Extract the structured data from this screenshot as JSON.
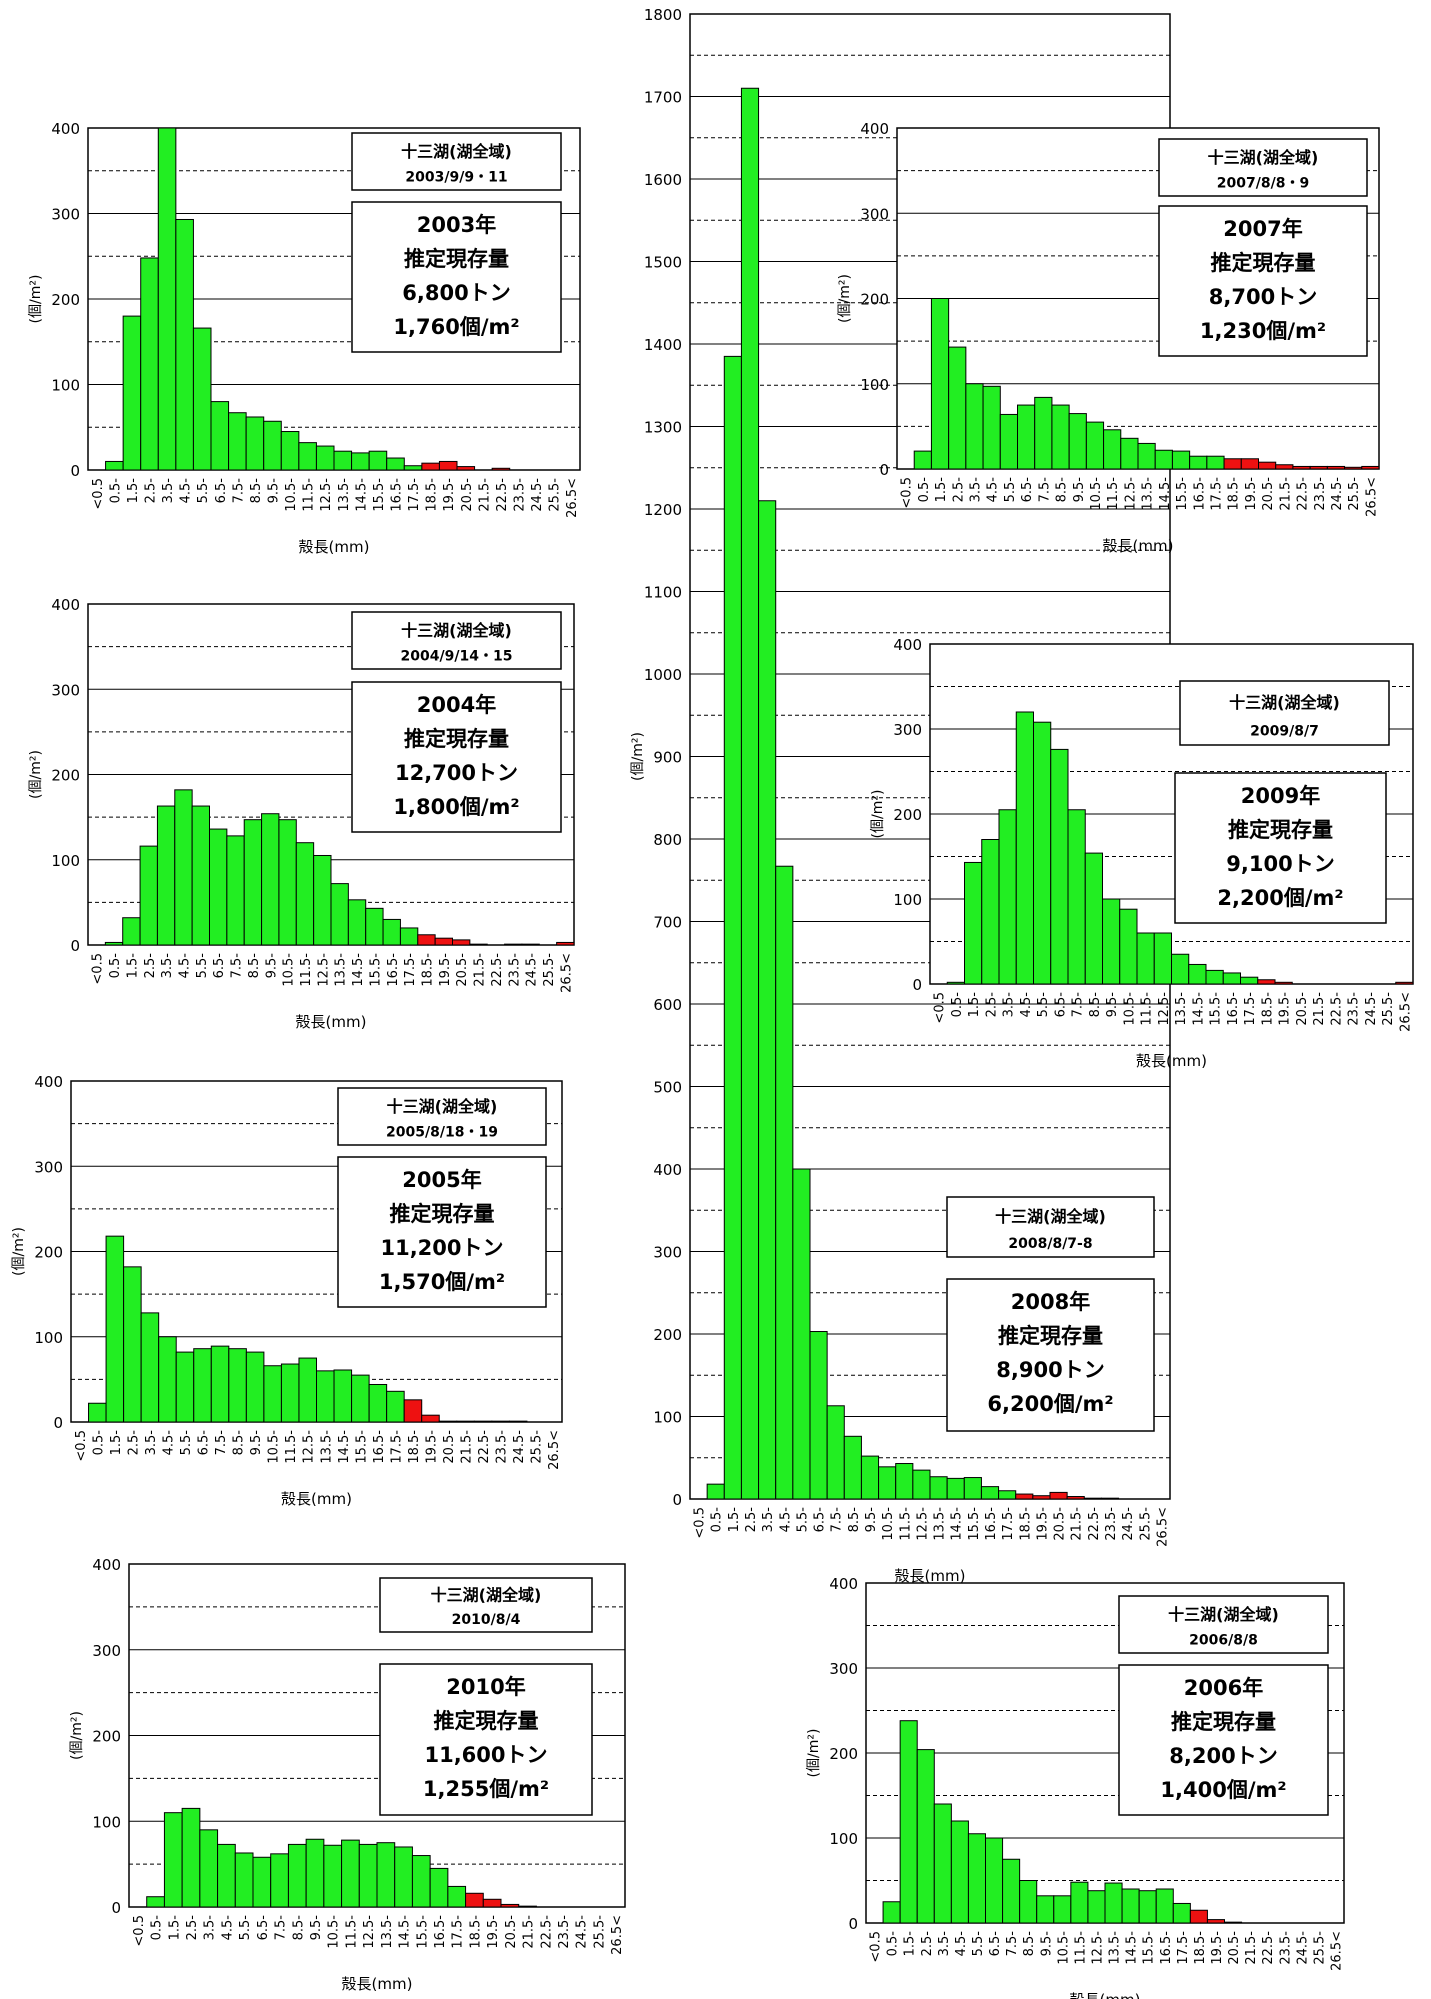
{
  "common": {
    "categories": [
      "<0.5",
      "0.5-",
      "1.5-",
      "2.5-",
      "3.5-",
      "4.5-",
      "5.5-",
      "6.5-",
      "7.5-",
      "8.5-",
      "9.5-",
      "10.5-",
      "11.5-",
      "12.5-",
      "13.5-",
      "14.5-",
      "15.5-",
      "16.5-",
      "17.5-",
      "18.5-",
      "19.5-",
      "20.5-",
      "21.5-",
      "22.5-",
      "23.5-",
      "24.5-",
      "25.5-",
      "26.5<"
    ],
    "xlabel": "殻長(mm)",
    "ylabel": "(個/m²)",
    "colors": {
      "green": "#22ee22",
      "red": "#ee1111"
    },
    "red_from_index": 19
  },
  "chart_data": [
    {
      "type": "bar",
      "id": "c2003",
      "values": [
        0,
        10,
        180,
        248,
        400,
        293,
        166,
        80,
        67,
        62,
        57,
        45,
        32,
        28,
        22,
        20,
        22,
        14,
        5,
        8,
        10,
        4,
        0,
        2,
        0,
        0,
        0,
        0
      ],
      "ylim": [
        0,
        400
      ],
      "yticks": [
        0,
        100,
        200,
        300,
        400
      ],
      "label_box": {
        "title": "十三湖(湖全域)",
        "date": "2003/9/9・11"
      },
      "summary_box": {
        "year": "2003年",
        "line2": "推定現存量",
        "tonnage": "6,800トン",
        "density": "1,760個/m²"
      }
    },
    {
      "type": "bar",
      "id": "c2004",
      "values": [
        0,
        3,
        32,
        116,
        163,
        182,
        163,
        136,
        128,
        147,
        154,
        147,
        120,
        105,
        72,
        53,
        43,
        30,
        20,
        12,
        8,
        6,
        1,
        0,
        1,
        1,
        0,
        3
      ],
      "ylim": [
        0,
        400
      ],
      "yticks": [
        0,
        100,
        200,
        300,
        400
      ],
      "label_box": {
        "title": "十三湖(湖全域)",
        "date": "2004/9/14・15"
      },
      "summary_box": {
        "year": "2004年",
        "line2": "推定現存量",
        "tonnage": "12,700トン",
        "density": "1,800個/m²"
      }
    },
    {
      "type": "bar",
      "id": "c2005",
      "values": [
        0,
        22,
        218,
        182,
        128,
        100,
        82,
        86,
        89,
        86,
        82,
        66,
        68,
        75,
        60,
        61,
        55,
        44,
        36,
        26,
        8,
        1,
        1,
        1,
        1,
        1,
        0,
        0
      ],
      "ylim": [
        0,
        400
      ],
      "yticks": [
        0,
        100,
        200,
        300,
        400
      ],
      "label_box": {
        "title": "十三湖(湖全域)",
        "date": "2005/8/18・19"
      },
      "summary_box": {
        "year": "2005年",
        "line2": "推定現存量",
        "tonnage": "11,200トン",
        "density": "1,570個/m²"
      }
    },
    {
      "type": "bar",
      "id": "c2010",
      "values": [
        0,
        12,
        110,
        115,
        90,
        73,
        63,
        58,
        62,
        73,
        79,
        72,
        78,
        73,
        75,
        70,
        60,
        45,
        24,
        16,
        9,
        3,
        1,
        0,
        0,
        0,
        0,
        0
      ],
      "ylim": [
        0,
        400
      ],
      "yticks": [
        0,
        100,
        200,
        300,
        400
      ],
      "label_box": {
        "title": "十三湖(湖全域)",
        "date": "2010/8/4"
      },
      "summary_box": {
        "year": "2010年",
        "line2": "推定現存量",
        "tonnage": "11,600トン",
        "density": "1,255個/m²"
      }
    },
    {
      "type": "bar",
      "id": "c2008",
      "values": [
        0,
        18,
        1385,
        1710,
        1210,
        767,
        400,
        203,
        113,
        76,
        52,
        39,
        43,
        35,
        27,
        25,
        26,
        15,
        10,
        6,
        4,
        8,
        3,
        1,
        1,
        0,
        0,
        0
      ],
      "ylim": [
        0,
        1800
      ],
      "yticks": [
        0,
        100,
        200,
        300,
        400,
        500,
        600,
        700,
        800,
        900,
        1000,
        1100,
        1200,
        1300,
        1400,
        1500,
        1600,
        1700,
        1800
      ],
      "label_box": {
        "title": "十三湖(湖全域)",
        "date": "2008/8/7-8"
      },
      "summary_box": {
        "year": "2008年",
        "line2": "推定現存量",
        "tonnage": "8,900トン",
        "density": "6,200個/m²"
      }
    },
    {
      "type": "bar",
      "id": "c2007",
      "values": [
        0,
        21,
        200,
        143,
        100,
        97,
        64,
        75,
        84,
        75,
        65,
        55,
        46,
        36,
        30,
        22,
        21,
        15,
        15,
        12,
        12,
        8,
        5,
        3,
        3,
        3,
        2,
        3
      ],
      "ylim": [
        0,
        400
      ],
      "yticks": [
        0,
        100,
        200,
        300,
        400
      ],
      "label_box": {
        "title": "十三湖(湖全域)",
        "date": "2007/8/8・9"
      },
      "summary_box": {
        "year": "2007年",
        "line2": "推定現存量",
        "tonnage": "8,700トン",
        "density": "1,230個/m²"
      }
    },
    {
      "type": "bar",
      "id": "c2009",
      "values": [
        0,
        2,
        143,
        170,
        205,
        320,
        308,
        276,
        205,
        154,
        100,
        88,
        60,
        60,
        35,
        23,
        16,
        13,
        8,
        5,
        2,
        0,
        0,
        0,
        0,
        0,
        0,
        2
      ],
      "ylim": [
        0,
        400
      ],
      "yticks": [
        0,
        100,
        200,
        300,
        400
      ],
      "label_box": {
        "title": "十三湖(湖全域)",
        "date": "2009/8/7"
      },
      "summary_box": {
        "year": "2009年",
        "line2": "推定現存量",
        "tonnage": "9,100トン",
        "density": "2,200個/m²"
      }
    },
    {
      "type": "bar",
      "id": "c2006",
      "values": [
        0,
        25,
        238,
        204,
        140,
        120,
        105,
        100,
        75,
        50,
        32,
        32,
        48,
        38,
        47,
        40,
        38,
        40,
        23,
        15,
        4,
        1,
        0,
        0,
        0,
        0,
        0,
        0
      ],
      "ylim": [
        0,
        400
      ],
      "yticks": [
        0,
        100,
        200,
        300,
        400
      ],
      "label_box": {
        "title": "十三湖(湖全域)",
        "date": "2006/8/8"
      },
      "summary_box": {
        "year": "2006年",
        "line2": "推定現存量",
        "tonnage": "8,200トン",
        "density": "1,400個/m²"
      }
    }
  ]
}
